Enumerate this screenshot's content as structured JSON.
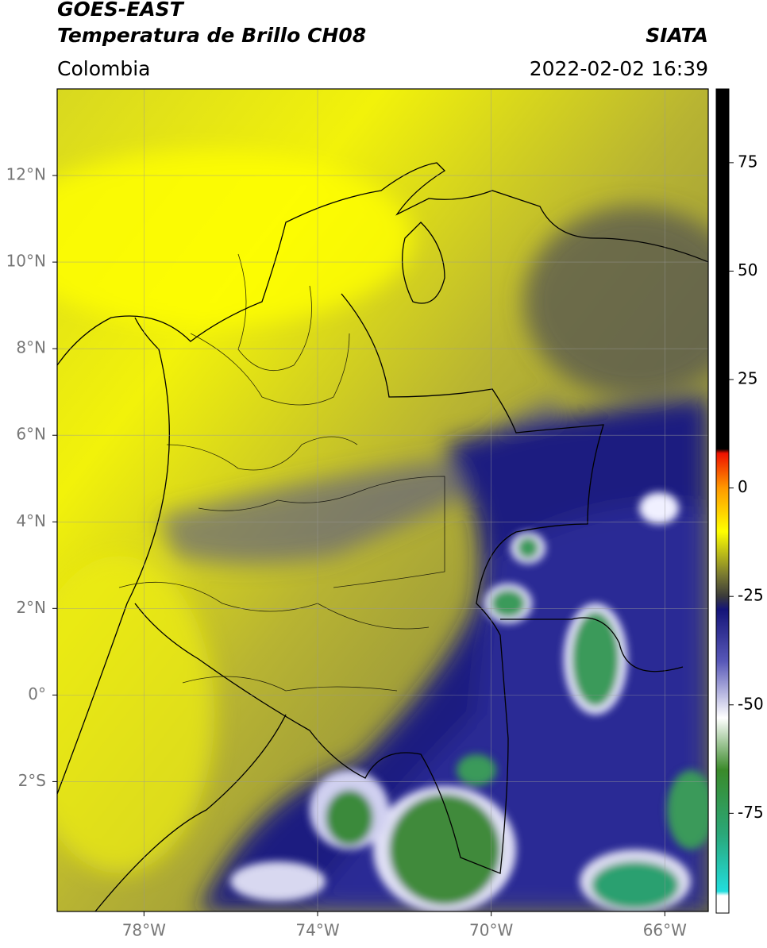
{
  "header": {
    "title": "GOES-EAST",
    "subtitle": "Temperatura de Brillo CH08",
    "source": "SIATA",
    "region": "Colombia",
    "datetime": "2022-02-02 16:39"
  },
  "map": {
    "lonlim": [
      -80,
      -65
    ],
    "latlim": [
      -5,
      14
    ],
    "lonticks": [
      {
        "value": -78,
        "label": "78°W"
      },
      {
        "value": -74,
        "label": "74°W"
      },
      {
        "value": -70,
        "label": "70°W"
      },
      {
        "value": -66,
        "label": "66°W"
      }
    ],
    "latticks": [
      {
        "value": 12,
        "label": "12°N"
      },
      {
        "value": 10,
        "label": "10°N"
      },
      {
        "value": 8,
        "label": "8°N"
      },
      {
        "value": 6,
        "label": "6°N"
      },
      {
        "value": 4,
        "label": "4°N"
      },
      {
        "value": 2,
        "label": "2°N"
      },
      {
        "value": 0,
        "label": "0°"
      },
      {
        "value": -2,
        "label": "2°S"
      }
    ],
    "grid": true
  },
  "colorbar": {
    "lim": [
      -98,
      92
    ],
    "ticks": [
      75,
      50,
      25,
      0,
      -25,
      -50,
      -75
    ],
    "colormap": [
      {
        "value": -98,
        "color": "#ffffff"
      },
      {
        "value": -94,
        "color": "#ffffff"
      },
      {
        "value": -93,
        "color": "#22dddd"
      },
      {
        "value": -80,
        "color": "#2aa87a"
      },
      {
        "value": -65,
        "color": "#3a8a2a"
      },
      {
        "value": -53,
        "color": "#ffffff"
      },
      {
        "value": -40,
        "color": "#5858b8"
      },
      {
        "value": -28,
        "color": "#141478"
      },
      {
        "value": -25,
        "color": "#3a3a3a"
      },
      {
        "value": -20,
        "color": "#7a7a30"
      },
      {
        "value": -10,
        "color": "#ffff00"
      },
      {
        "value": 0,
        "color": "#ff9900"
      },
      {
        "value": 8,
        "color": "#ee1100"
      },
      {
        "value": 9,
        "color": "#000000"
      },
      {
        "value": 92,
        "color": "#000000"
      }
    ]
  }
}
